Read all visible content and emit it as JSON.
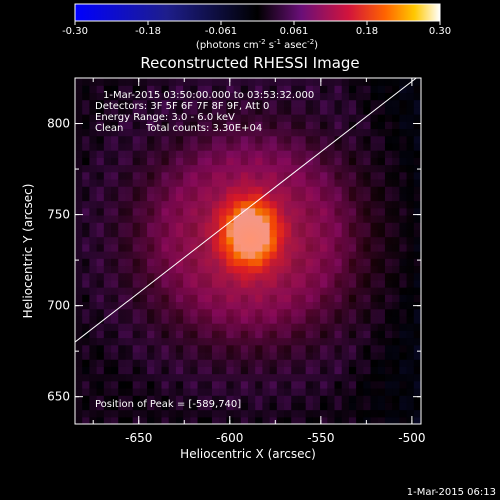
{
  "colorbar": {
    "ticks": [
      "-0.30",
      "-0.18",
      "-0.061",
      "0.061",
      "0.18",
      "0.30"
    ],
    "label_text": "(photons cm",
    "label_exp1": "-2",
    "label_mid": " s",
    "label_exp2": "-1",
    "label_end": " asec",
    "label_exp3": "-2",
    "label_close": ")",
    "range": [
      -0.3,
      0.3
    ]
  },
  "chart_data": {
    "type": "heatmap",
    "title": "Reconstructed RHESSI Image",
    "xlabel": "Heliocentric X (arcsec)",
    "ylabel": "Heliocentric Y (arcsec)",
    "xlim": [
      -685,
      -495
    ],
    "ylim": [
      635,
      825
    ],
    "x_ticks": [
      "-650",
      "-600",
      "-550",
      "-500"
    ],
    "y_ticks": [
      "650",
      "700",
      "750",
      "800"
    ],
    "x_tick_values": [
      -650,
      -600,
      -550,
      -500
    ],
    "y_tick_values": [
      650,
      700,
      750,
      800
    ],
    "peak": {
      "x": -589,
      "y": 740,
      "value": 0.3
    },
    "limb_line": [
      [
        -685,
        680
      ],
      [
        -495,
        827
      ]
    ],
    "annotations": {
      "time": "1-Mar-2015 03:50:00.000 to 03:53:32.000",
      "detectors": "Detectors: 3F 5F 6F 7F 8F 9F, Att 0",
      "energy": "Energy Range: 3.0 - 6.0 keV",
      "clean": "Clean",
      "counts": "Total counts: 3.30E+04",
      "peak_label": "Position of Peak = [-589,740]"
    }
  },
  "footer": {
    "timestamp": "1-Mar-2015 06:13"
  }
}
